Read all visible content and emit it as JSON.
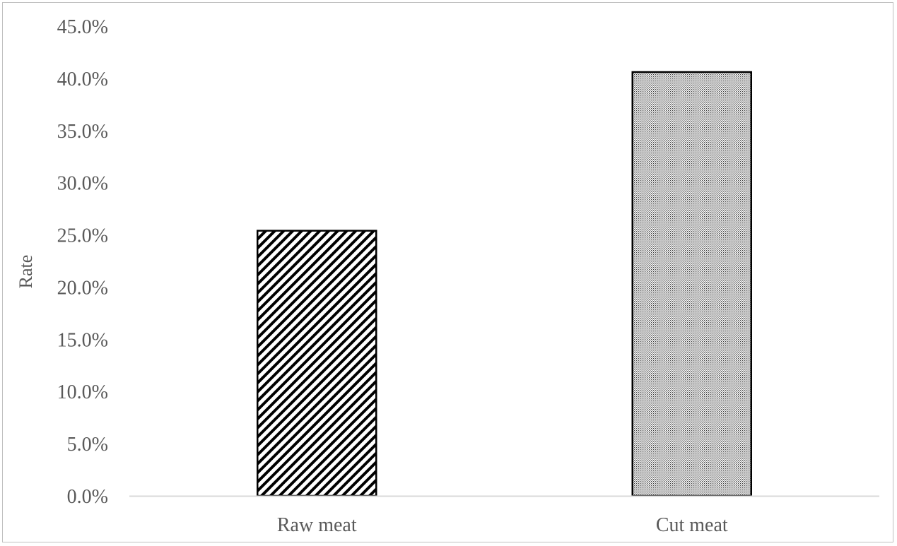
{
  "chart_data": {
    "type": "bar",
    "title": "",
    "xlabel": "",
    "ylabel": "Rate",
    "categories": [
      "Raw meat",
      "Cut meat"
    ],
    "values": [
      0.254,
      0.406
    ],
    "ylim": [
      0,
      0.45
    ],
    "y_ticks": [
      0.0,
      0.05,
      0.1,
      0.15,
      0.2,
      0.25,
      0.3,
      0.35,
      0.4,
      0.45
    ],
    "y_tick_labels": [
      "0.0%",
      "5.0%",
      "10.0%",
      "15.0%",
      "20.0%",
      "25.0%",
      "30.0%",
      "35.0%",
      "40.0%",
      "45.0%"
    ],
    "bar_fills": [
      "diagonal-stripes",
      "fine-dots"
    ],
    "grid": false,
    "legend": "none",
    "colors": {
      "bar_stroke": "#000000",
      "axis_line": "#d9d9d9",
      "text": "#595959",
      "border": "#bfbfbf"
    }
  }
}
